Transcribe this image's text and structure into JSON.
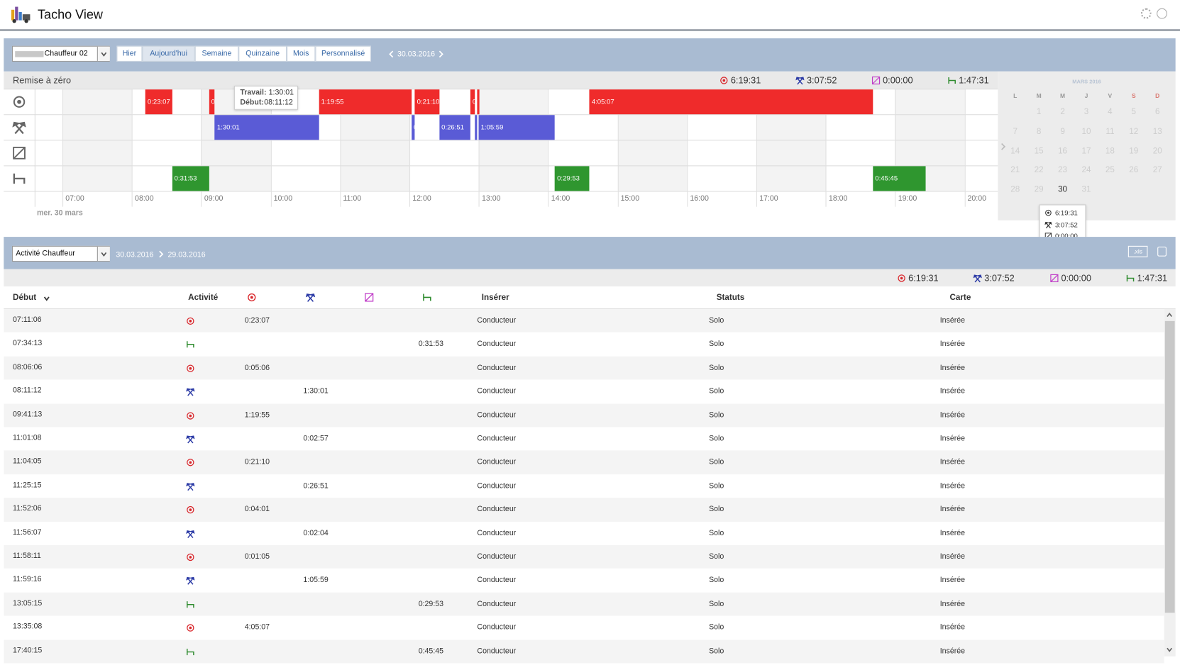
{
  "header": {
    "title": "Tacho View"
  },
  "toolbar": {
    "driver": "Chauffeur 02",
    "periods": [
      "Hier",
      "Aujourd'hui",
      "Semaine",
      "Quinzaine",
      "Mois",
      "Personnalisé"
    ],
    "date": "30.03.2016"
  },
  "timeline": {
    "reset": "Remise à zéro",
    "totals": [
      "6:19:31",
      "3:07:52",
      "0:00:00",
      "1:47:31"
    ],
    "hours": [
      "07:00",
      "08:00",
      "09:00",
      "10:00",
      "11:00",
      "12:00",
      "13:00",
      "14:00",
      "15:00",
      "16:00",
      "17:00",
      "18:00",
      "19:00",
      "20:00"
    ],
    "day_label": "mer. 30 mars",
    "tooltip": {
      "labels": [
        "Travail:",
        "Début:"
      ]
    }
  },
  "calendar": {
    "month": "MARS 2016",
    "weekdays": [
      "L",
      "M",
      "M",
      "J",
      "V",
      "S",
      "D"
    ],
    "weeks": [
      [
        null,
        1,
        2,
        3,
        4,
        5,
        6
      ],
      [
        7,
        8,
        9,
        10,
        11,
        12,
        13
      ],
      [
        14,
        15,
        16,
        17,
        18,
        19,
        20
      ],
      [
        21,
        22,
        23,
        24,
        25,
        26,
        27
      ],
      [
        28,
        29,
        30,
        31,
        null,
        null,
        null
      ]
    ],
    "selected": 30
  },
  "activity": {
    "view": "Activité Chauffeur",
    "from": "30.03.2016",
    "to": "29.03.2016",
    "export": ".xls"
  },
  "table": {
    "columns": [
      "Début",
      "Activité",
      null,
      null,
      null,
      null,
      "Insérer",
      "Statuts",
      "Carte"
    ],
    "rows": [
      [
        "07:11:06",
        null,
        "0:23:07",
        null,
        null,
        null,
        "Conducteur",
        "Solo",
        "Insérée"
      ],
      [
        "07:34:13",
        null,
        null,
        null,
        null,
        "0:31:53",
        "Conducteur",
        "Solo",
        "Insérée"
      ],
      [
        "08:06:06",
        null,
        "0:05:06",
        null,
        null,
        null,
        "Conducteur",
        "Solo",
        "Insérée"
      ],
      [
        "08:11:12",
        null,
        null,
        "1:30:01",
        null,
        null,
        "Conducteur",
        "Solo",
        "Insérée"
      ],
      [
        "09:41:13",
        null,
        "1:19:55",
        null,
        null,
        null,
        "Conducteur",
        "Solo",
        "Insérée"
      ],
      [
        "11:01:08",
        null,
        null,
        "0:02:57",
        null,
        null,
        "Conducteur",
        "Solo",
        "Insérée"
      ],
      [
        "11:04:05",
        null,
        "0:21:10",
        null,
        null,
        null,
        "Conducteur",
        "Solo",
        "Insérée"
      ],
      [
        "11:25:15",
        null,
        null,
        "0:26:51",
        null,
        null,
        "Conducteur",
        "Solo",
        "Insérée"
      ],
      [
        "11:52:06",
        null,
        "0:04:01",
        null,
        null,
        null,
        "Conducteur",
        "Solo",
        "Insérée"
      ],
      [
        "11:56:07",
        null,
        null,
        "0:02:04",
        null,
        null,
        "Conducteur",
        "Solo",
        "Insérée"
      ],
      [
        "11:58:11",
        null,
        "0:01:05",
        null,
        null,
        null,
        "Conducteur",
        "Solo",
        "Insérée"
      ],
      [
        "11:59:16",
        null,
        null,
        "1:05:59",
        null,
        null,
        "Conducteur",
        "Solo",
        "Insérée"
      ],
      [
        "13:05:15",
        null,
        null,
        null,
        null,
        "0:29:53",
        "Conducteur",
        "Solo",
        "Insérée"
      ],
      [
        "13:35:08",
        null,
        "4:05:07",
        null,
        null,
        null,
        "Conducteur",
        "Solo",
        "Insérée"
      ],
      [
        "17:40:15",
        null,
        null,
        null,
        null,
        "0:45:45",
        "Conducteur",
        "Solo",
        "Insérée"
      ]
    ]
  }
}
